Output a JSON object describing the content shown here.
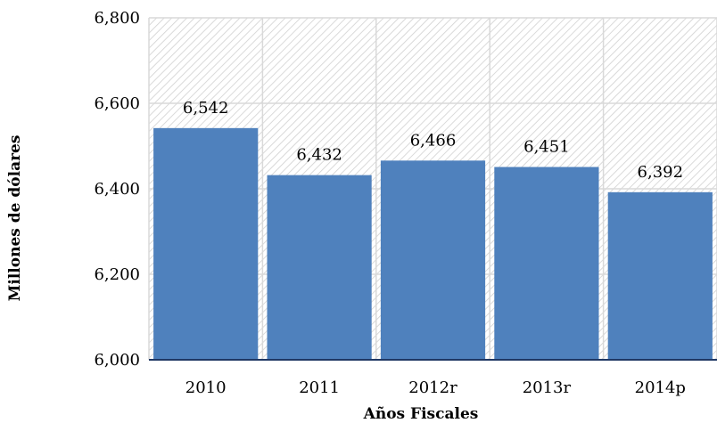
{
  "chart_data": {
    "type": "bar",
    "categories": [
      "2010",
      "2011",
      "2012r",
      "2013r",
      "2014p"
    ],
    "values": [
      6542,
      6432,
      6466,
      6451,
      6392
    ],
    "data_labels": [
      "6,542",
      "6,432",
      "6,466",
      "6,451",
      "6,392"
    ],
    "ylim": [
      6000,
      6800
    ],
    "yticks": [
      6000,
      6200,
      6400,
      6600,
      6800
    ],
    "ytick_labels": [
      "6,000",
      "6,200",
      "6,400",
      "6,600",
      "6,800"
    ],
    "xlabel": "Años Fiscales",
    "ylabel": "Millones de dólares",
    "title": "",
    "grid": true,
    "background": "hatched",
    "colors": {
      "bar": "#4f81bd",
      "axis": "#1f3864",
      "grid": "#d9d9d9",
      "hatch": "#d0d0d0"
    }
  }
}
